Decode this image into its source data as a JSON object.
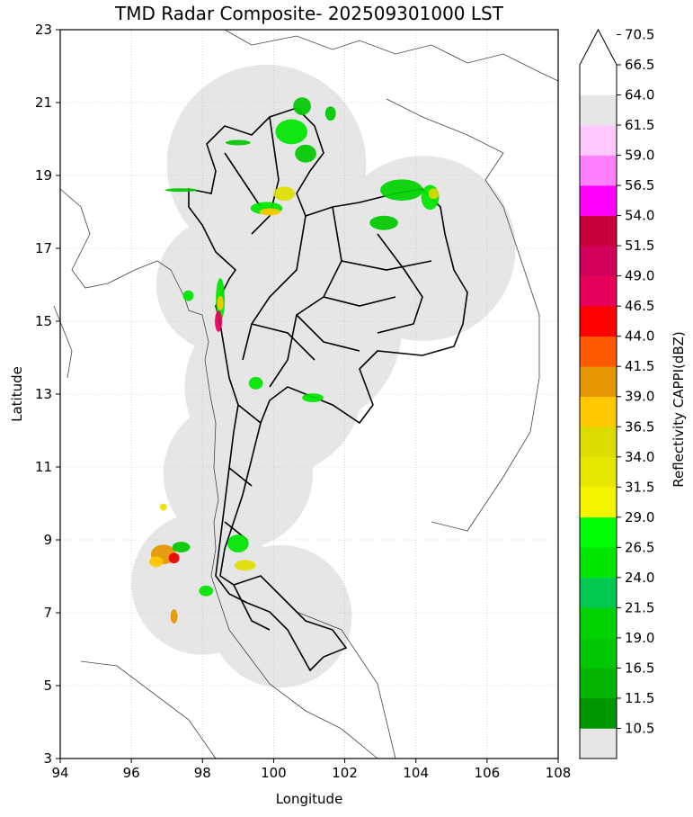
{
  "map": {
    "title": "TMD Radar Composite- 202509301000 LST",
    "xlabel": "Longitude",
    "ylabel": "Latitude",
    "lon_range": [
      94,
      108
    ],
    "lat_range": [
      3,
      23
    ],
    "lon_ticks": [
      "94",
      "96",
      "98",
      "100",
      "102",
      "104",
      "106",
      "108"
    ],
    "lat_ticks": [
      "3",
      "5",
      "7",
      "9",
      "11",
      "13",
      "15",
      "17",
      "19",
      "21",
      "23"
    ],
    "grid": true,
    "coverage_color": "#e6e6e6",
    "coverage_circles": [
      {
        "lon": 99.8,
        "lat": 19.3,
        "r_deg": 2.8
      },
      {
        "lon": 104.2,
        "lat": 17.0,
        "r_deg": 2.6
      },
      {
        "lon": 100.8,
        "lat": 14.8,
        "r_deg": 2.8
      },
      {
        "lon": 98.6,
        "lat": 16.0,
        "r_deg": 1.9
      },
      {
        "lon": 100.0,
        "lat": 13.2,
        "r_deg": 2.5
      },
      {
        "lon": 99.0,
        "lat": 10.8,
        "r_deg": 2.1
      },
      {
        "lon": 98.0,
        "lat": 7.8,
        "r_deg": 2.0
      },
      {
        "lon": 100.2,
        "lat": 6.9,
        "r_deg": 2.0
      }
    ],
    "echoes": [
      {
        "lon": 100.8,
        "lat": 20.9,
        "w": 0.5,
        "h": 0.5,
        "color": "#00c800"
      },
      {
        "lon": 100.5,
        "lat": 20.2,
        "w": 0.9,
        "h": 0.7,
        "color": "#00e600"
      },
      {
        "lon": 100.9,
        "lat": 19.6,
        "w": 0.6,
        "h": 0.5,
        "color": "#00c800"
      },
      {
        "lon": 100.3,
        "lat": 18.5,
        "w": 0.6,
        "h": 0.4,
        "color": "#e0e000"
      },
      {
        "lon": 99.8,
        "lat": 18.1,
        "w": 0.9,
        "h": 0.35,
        "color": "#00e600"
      },
      {
        "lon": 99.9,
        "lat": 18.0,
        "w": 0.6,
        "h": 0.2,
        "color": "#ffc800"
      },
      {
        "lon": 101.6,
        "lat": 20.7,
        "w": 0.3,
        "h": 0.4,
        "color": "#00c800"
      },
      {
        "lon": 99.0,
        "lat": 19.9,
        "w": 0.7,
        "h": 0.15,
        "color": "#00c800"
      },
      {
        "lon": 103.6,
        "lat": 18.6,
        "w": 1.2,
        "h": 0.6,
        "color": "#00d200"
      },
      {
        "lon": 104.4,
        "lat": 18.4,
        "w": 0.5,
        "h": 0.7,
        "color": "#00e600"
      },
      {
        "lon": 104.5,
        "lat": 18.5,
        "w": 0.3,
        "h": 0.3,
        "color": "#d9d900"
      },
      {
        "lon": 103.1,
        "lat": 17.7,
        "w": 0.8,
        "h": 0.4,
        "color": "#00c800"
      },
      {
        "lon": 97.4,
        "lat": 18.6,
        "w": 0.9,
        "h": 0.1,
        "color": "#00c800"
      },
      {
        "lon": 98.5,
        "lat": 15.6,
        "w": 0.25,
        "h": 1.2,
        "color": "#00e600"
      },
      {
        "lon": 98.45,
        "lat": 15.0,
        "w": 0.2,
        "h": 0.6,
        "color": "#e6005a"
      },
      {
        "lon": 98.5,
        "lat": 15.5,
        "w": 0.18,
        "h": 0.4,
        "color": "#ffc800"
      },
      {
        "lon": 99.5,
        "lat": 13.3,
        "w": 0.4,
        "h": 0.35,
        "color": "#00e600"
      },
      {
        "lon": 101.1,
        "lat": 12.9,
        "w": 0.6,
        "h": 0.25,
        "color": "#00e600"
      },
      {
        "lon": 96.9,
        "lat": 8.6,
        "w": 0.7,
        "h": 0.55,
        "color": "#e69600"
      },
      {
        "lon": 97.2,
        "lat": 8.5,
        "w": 0.3,
        "h": 0.3,
        "color": "#e60000"
      },
      {
        "lon": 96.7,
        "lat": 8.4,
        "w": 0.4,
        "h": 0.3,
        "color": "#ffc800"
      },
      {
        "lon": 97.2,
        "lat": 6.9,
        "w": 0.2,
        "h": 0.4,
        "color": "#e69600"
      },
      {
        "lon": 99.2,
        "lat": 8.3,
        "w": 0.6,
        "h": 0.3,
        "color": "#e0e000"
      },
      {
        "lon": 99.0,
        "lat": 8.9,
        "w": 0.6,
        "h": 0.5,
        "color": "#00e600"
      },
      {
        "lon": 98.1,
        "lat": 7.6,
        "w": 0.4,
        "h": 0.3,
        "color": "#00e600"
      },
      {
        "lon": 97.4,
        "lat": 8.8,
        "w": 0.5,
        "h": 0.3,
        "color": "#00c800"
      },
      {
        "lon": 96.9,
        "lat": 9.9,
        "w": 0.2,
        "h": 0.2,
        "color": "#e0e000"
      },
      {
        "lon": 97.6,
        "lat": 15.7,
        "w": 0.3,
        "h": 0.3,
        "color": "#00e600"
      }
    ]
  },
  "colorbar": {
    "label": "Reflectivity CAPPI(dBZ)",
    "ticks": [
      "10.5",
      "11.5",
      "16.5",
      "19.0",
      "21.5",
      "24.0",
      "26.5",
      "29.0",
      "31.5",
      "34.0",
      "36.5",
      "39.0",
      "41.5",
      "44.0",
      "46.5",
      "49.0",
      "51.5",
      "54.0",
      "56.5",
      "59.0",
      "61.5",
      "64.0",
      "66.5",
      "70.5"
    ],
    "colors": [
      "#e6e6e6",
      "#009600",
      "#00b400",
      "#00c800",
      "#00d200",
      "#00c850",
      "#00e600",
      "#00ff00",
      "#f5f500",
      "#e6e600",
      "#dcdc00",
      "#ffc800",
      "#e69600",
      "#ff5a00",
      "#ff0000",
      "#e6005a",
      "#d2005a",
      "#c8003c",
      "#ff00ff",
      "#ff80ff",
      "#ffc8ff",
      "#e6e6e6",
      "#ffffff"
    ],
    "extend": "max"
  }
}
